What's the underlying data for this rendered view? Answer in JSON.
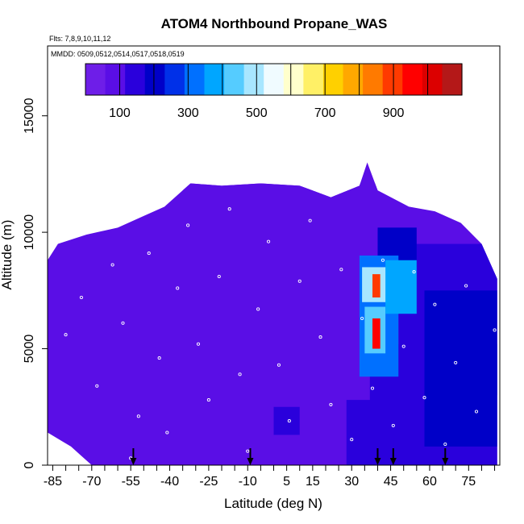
{
  "chart_data": {
    "type": "heatmap",
    "title": "ATOM4 Northbound Propane_WAS",
    "subtitle_flights": "Flts: 7,8,9,10,11,12",
    "subtitle_dates": "MMDD: 0509,0512,0514,0517,0518,0519",
    "xlabel": "Latitude (deg N)",
    "ylabel": "Altitude (m)",
    "xlim": [
      -87,
      87
    ],
    "ylim": [
      0,
      18000
    ],
    "x_ticks": [
      -85,
      -70,
      -55,
      -40,
      -25,
      -10,
      5,
      15,
      30,
      45,
      60,
      75
    ],
    "x_tick_labels": [
      "-85",
      "-70",
      "-55",
      "-40",
      "-25",
      "-10",
      "5",
      "15",
      "30",
      "45",
      "60",
      "75"
    ],
    "x_minor_ticks": [
      -80,
      -75,
      -65,
      -60,
      -50,
      -45,
      -35,
      -30,
      -20,
      -15,
      -5,
      0,
      10,
      20,
      25,
      35,
      40,
      50,
      55,
      65,
      70,
      80,
      85
    ],
    "y_ticks": [
      0,
      5000,
      10000,
      15000
    ],
    "y_tick_labels": [
      "0",
      "5000",
      "10000",
      "15000"
    ],
    "colorbar": {
      "range": [
        0,
        1100
      ],
      "ticks": [
        100,
        300,
        500,
        700,
        900
      ],
      "tick_labels": [
        "100",
        "300",
        "500",
        "700",
        "900"
      ],
      "colors": [
        "#6e1ee8",
        "#5a0ee6",
        "#2a00dc",
        "#0000c8",
        "#0030e8",
        "#0070ff",
        "#00a6ff",
        "#55ccff",
        "#a8e6ff",
        "#f0fbff",
        "#ffffcc",
        "#fff066",
        "#ffd000",
        "#ffa800",
        "#ff7a00",
        "#ff3a00",
        "#ff0000",
        "#dc0000",
        "#b41818"
      ]
    },
    "background_value": 60,
    "top_profile": [
      {
        "lat": -87,
        "alt": 8800
      },
      {
        "lat": -83,
        "alt": 9500
      },
      {
        "lat": -72,
        "alt": 9900
      },
      {
        "lat": -60,
        "alt": 10200
      },
      {
        "lat": -50,
        "alt": 10700
      },
      {
        "lat": -42,
        "alt": 11100
      },
      {
        "lat": -32,
        "alt": 12100
      },
      {
        "lat": -20,
        "alt": 12000
      },
      {
        "lat": -5,
        "alt": 12100
      },
      {
        "lat": 10,
        "alt": 12000
      },
      {
        "lat": 22,
        "alt": 11500
      },
      {
        "lat": 33,
        "alt": 12000
      },
      {
        "lat": 36,
        "alt": 13000
      },
      {
        "lat": 40,
        "alt": 11800
      },
      {
        "lat": 52,
        "alt": 11100
      },
      {
        "lat": 62,
        "alt": 10900
      },
      {
        "lat": 72,
        "alt": 10400
      },
      {
        "lat": 80,
        "alt": 9500
      },
      {
        "lat": 86,
        "alt": 8000
      }
    ],
    "bottom_profile": [
      {
        "lat": -87,
        "alt": 1400
      },
      {
        "lat": -81,
        "alt": 1000
      },
      {
        "lat": -78,
        "alt": 800
      },
      {
        "lat": -74,
        "alt": 400
      },
      {
        "lat": -70,
        "alt": 0
      },
      {
        "lat": 86,
        "alt": 0
      }
    ],
    "regions": [
      {
        "lat_min": 37,
        "lat_max": 86,
        "alt_min": 0,
        "alt_max": 5200,
        "value": 155
      },
      {
        "lat_min": 28,
        "lat_max": 40,
        "alt_min": 0,
        "alt_max": 2800,
        "value": 140
      },
      {
        "lat_min": 48,
        "lat_max": 86,
        "alt_min": 3000,
        "alt_max": 9500,
        "value": 165
      },
      {
        "lat_min": 58,
        "lat_max": 86,
        "alt_min": 800,
        "alt_max": 7500,
        "value": 185
      },
      {
        "lat_min": 40,
        "lat_max": 55,
        "alt_min": 8500,
        "alt_max": 10200,
        "value": 215
      },
      {
        "lat_min": 33,
        "lat_max": 48,
        "alt_min": 3800,
        "alt_max": 9000,
        "value": 320
      },
      {
        "lat_min": 34,
        "lat_max": 46,
        "alt_min": 7000,
        "alt_max": 8500,
        "value": 470
      },
      {
        "lat_min": 35,
        "lat_max": 43,
        "alt_min": 4800,
        "alt_max": 6800,
        "value": 450
      },
      {
        "lat_min": 43,
        "lat_max": 55,
        "alt_min": 6500,
        "alt_max": 8800,
        "value": 380
      },
      {
        "lat_min": 38,
        "lat_max": 41,
        "alt_min": 7200,
        "alt_max": 8200,
        "value": 880
      },
      {
        "lat_min": 38,
        "lat_max": 41,
        "alt_min": 5000,
        "alt_max": 6300,
        "value": 950
      },
      {
        "lat_min": -57,
        "lat_max": -52,
        "alt_min": 0,
        "alt_max": 2600,
        "value": 110
      },
      {
        "lat_min": -47,
        "lat_max": -40,
        "alt_min": 0,
        "alt_max": 2800,
        "value": 100
      },
      {
        "lat_min": 0,
        "lat_max": 10,
        "alt_min": 1300,
        "alt_max": 2500,
        "value": 120
      },
      {
        "lat_min": -3,
        "lat_max": 3,
        "alt_min": 3800,
        "alt_max": 5500,
        "value": 95
      },
      {
        "lat_min": -40,
        "lat_max": -30,
        "alt_min": 3500,
        "alt_max": 5300,
        "value": 90
      },
      {
        "lat_min": 15,
        "lat_max": 28,
        "alt_min": 3000,
        "alt_max": 6500,
        "value": 88
      },
      {
        "lat_min": -35,
        "lat_max": 40,
        "alt_min": 10000,
        "alt_max": 12100,
        "value": 80
      }
    ],
    "flight_track_samples": [
      {
        "lat": -80,
        "alt": 5600
      },
      {
        "lat": -74,
        "alt": 7200
      },
      {
        "lat": -68,
        "alt": 3400
      },
      {
        "lat": -62,
        "alt": 8600
      },
      {
        "lat": -58,
        "alt": 6100
      },
      {
        "lat": -55,
        "alt": 300
      },
      {
        "lat": -52,
        "alt": 2100
      },
      {
        "lat": -48,
        "alt": 9100
      },
      {
        "lat": -44,
        "alt": 4600
      },
      {
        "lat": -41,
        "alt": 1400
      },
      {
        "lat": -37,
        "alt": 7600
      },
      {
        "lat": -33,
        "alt": 10300
      },
      {
        "lat": -29,
        "alt": 5200
      },
      {
        "lat": -25,
        "alt": 2800
      },
      {
        "lat": -21,
        "alt": 8100
      },
      {
        "lat": -17,
        "alt": 11000
      },
      {
        "lat": -13,
        "alt": 3900
      },
      {
        "lat": -10,
        "alt": 600
      },
      {
        "lat": -6,
        "alt": 6700
      },
      {
        "lat": -2,
        "alt": 9600
      },
      {
        "lat": 2,
        "alt": 4300
      },
      {
        "lat": 6,
        "alt": 1900
      },
      {
        "lat": 10,
        "alt": 7900
      },
      {
        "lat": 14,
        "alt": 10500
      },
      {
        "lat": 18,
        "alt": 5500
      },
      {
        "lat": 22,
        "alt": 2600
      },
      {
        "lat": 26,
        "alt": 8400
      },
      {
        "lat": 30,
        "alt": 1100
      },
      {
        "lat": 34,
        "alt": 6300
      },
      {
        "lat": 38,
        "alt": 3300
      },
      {
        "lat": 42,
        "alt": 8800
      },
      {
        "lat": 46,
        "alt": 1700
      },
      {
        "lat": 50,
        "alt": 5100
      },
      {
        "lat": 54,
        "alt": 8300
      },
      {
        "lat": 58,
        "alt": 2900
      },
      {
        "lat": 62,
        "alt": 6900
      },
      {
        "lat": 66,
        "alt": 900
      },
      {
        "lat": 70,
        "alt": 4400
      },
      {
        "lat": 74,
        "alt": 7700
      },
      {
        "lat": 78,
        "alt": 2300
      },
      {
        "lat": 82,
        "alt": 9300
      },
      {
        "lat": 85,
        "alt": 5800
      }
    ],
    "arrow_markers_lat": [
      -54,
      -9,
      40,
      46,
      66
    ]
  }
}
